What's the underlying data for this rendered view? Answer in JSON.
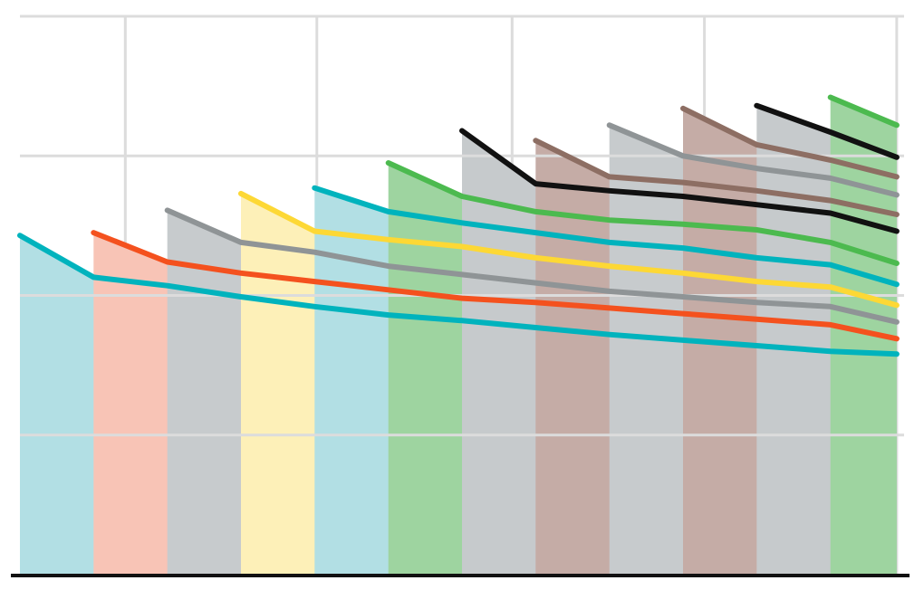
{
  "chart_data": {
    "type": "area",
    "title": "",
    "xlabel": "",
    "ylabel": "",
    "xlim": [
      0,
      12
    ],
    "ylim": [
      0,
      4
    ],
    "grid": true,
    "x_gridlines": [
      1.43,
      4.03,
      6.68,
      9.29,
      11.9
    ],
    "y_gridlines": [
      1,
      2,
      3,
      4
    ],
    "series": [
      {
        "color": "#00b3bd",
        "fill": "#b2dfe4",
        "points": [
          [
            0.0,
            2.43
          ],
          [
            1.0,
            2.13
          ],
          [
            2.0,
            2.07
          ],
          [
            3.0,
            1.99
          ],
          [
            4.0,
            1.92
          ],
          [
            5.0,
            1.86
          ],
          [
            6.0,
            1.82
          ],
          [
            7.0,
            1.77
          ],
          [
            8.0,
            1.72
          ],
          [
            9.0,
            1.68
          ],
          [
            10.0,
            1.64
          ],
          [
            11.0,
            1.6
          ],
          [
            11.9,
            1.58
          ]
        ]
      },
      {
        "color": "#f4511e",
        "fill": "#f8c4b6",
        "points": [
          [
            1.0,
            2.45
          ],
          [
            2.0,
            2.24
          ],
          [
            3.0,
            2.16
          ],
          [
            4.0,
            2.1
          ],
          [
            5.0,
            2.04
          ],
          [
            6.0,
            1.98
          ],
          [
            7.0,
            1.95
          ],
          [
            8.0,
            1.91
          ],
          [
            9.0,
            1.87
          ],
          [
            10.0,
            1.83
          ],
          [
            11.0,
            1.79
          ],
          [
            11.9,
            1.69
          ]
        ]
      },
      {
        "color": "#8f9496",
        "fill": "#c7cbcd",
        "points": [
          [
            2.0,
            2.61
          ],
          [
            3.0,
            2.38
          ],
          [
            4.0,
            2.31
          ],
          [
            5.0,
            2.21
          ],
          [
            6.0,
            2.15
          ],
          [
            7.0,
            2.09
          ],
          [
            8.0,
            2.03
          ],
          [
            9.0,
            1.99
          ],
          [
            10.0,
            1.95
          ],
          [
            11.0,
            1.92
          ],
          [
            11.9,
            1.81
          ]
        ]
      },
      {
        "color": "#fdd835",
        "fill": "#fdf0b8",
        "points": [
          [
            3.0,
            2.73
          ],
          [
            4.0,
            2.46
          ],
          [
            5.0,
            2.4
          ],
          [
            6.0,
            2.35
          ],
          [
            7.0,
            2.27
          ],
          [
            8.0,
            2.21
          ],
          [
            9.0,
            2.16
          ],
          [
            10.0,
            2.1
          ],
          [
            11.0,
            2.06
          ],
          [
            11.9,
            1.93
          ]
        ]
      },
      {
        "color": "#00b3bd",
        "fill": "#b2dfe4",
        "points": [
          [
            4.0,
            2.77
          ],
          [
            5.0,
            2.6
          ],
          [
            6.0,
            2.52
          ],
          [
            7.0,
            2.45
          ],
          [
            8.0,
            2.38
          ],
          [
            9.0,
            2.34
          ],
          [
            10.0,
            2.27
          ],
          [
            11.0,
            2.22
          ],
          [
            11.9,
            2.08
          ]
        ]
      },
      {
        "color": "#4cba4f",
        "fill": "#9ed4a0",
        "points": [
          [
            5.0,
            2.95
          ],
          [
            6.0,
            2.71
          ],
          [
            7.0,
            2.6
          ],
          [
            8.0,
            2.54
          ],
          [
            9.0,
            2.51
          ],
          [
            10.0,
            2.47
          ],
          [
            11.0,
            2.38
          ],
          [
            11.9,
            2.23
          ]
        ]
      },
      {
        "color": "#111111",
        "fill": "#c6cacc",
        "points": [
          [
            6.0,
            3.18
          ],
          [
            7.0,
            2.8
          ],
          [
            8.0,
            2.75
          ],
          [
            9.0,
            2.71
          ],
          [
            10.0,
            2.65
          ],
          [
            11.0,
            2.59
          ],
          [
            11.9,
            2.46
          ]
        ]
      },
      {
        "color": "#8d6e63",
        "fill": "#c5aca6",
        "points": [
          [
            7.0,
            3.11
          ],
          [
            8.0,
            2.85
          ],
          [
            9.0,
            2.81
          ],
          [
            10.0,
            2.75
          ],
          [
            11.0,
            2.68
          ],
          [
            11.9,
            2.58
          ]
        ]
      },
      {
        "color": "#8f9496",
        "fill": "#c7cbcd",
        "points": [
          [
            8.0,
            3.22
          ],
          [
            9.0,
            3.0
          ],
          [
            10.0,
            2.91
          ],
          [
            11.0,
            2.84
          ],
          [
            11.9,
            2.72
          ]
        ]
      },
      {
        "color": "#8d6e63",
        "fill": "#c5aca6",
        "points": [
          [
            9.0,
            3.34
          ],
          [
            10.0,
            3.08
          ],
          [
            11.0,
            2.97
          ],
          [
            11.9,
            2.85
          ]
        ]
      },
      {
        "color": "#111111",
        "fill": "#c6cacc",
        "points": [
          [
            10.0,
            3.36
          ],
          [
            11.0,
            3.17
          ],
          [
            11.9,
            2.99
          ]
        ]
      },
      {
        "color": "#4cba4f",
        "fill": "#9ed4a0",
        "points": [
          [
            11.0,
            3.42
          ],
          [
            11.9,
            3.22
          ]
        ]
      }
    ]
  }
}
